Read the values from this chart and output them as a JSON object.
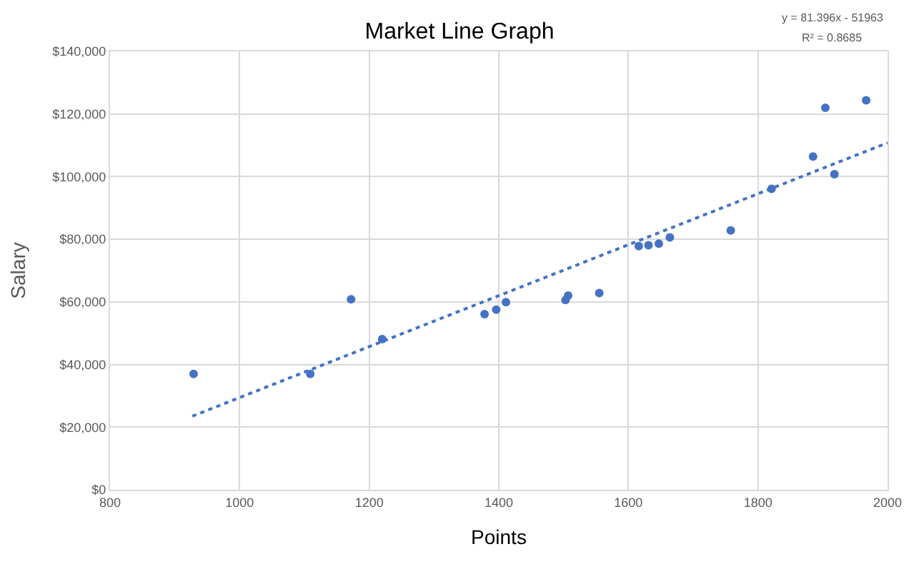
{
  "chart_data": {
    "type": "scatter",
    "title": "Market Line Graph",
    "xlabel": "Points",
    "ylabel": "Salary",
    "annotations": [
      "y = 81.396x - 51963",
      "R² = 0.8685"
    ],
    "xlim": [
      800,
      2000
    ],
    "xticks": [
      800,
      1000,
      1200,
      1400,
      1600,
      1800,
      2000
    ],
    "ylim": [
      0,
      140000
    ],
    "yticks": [
      {
        "value": 0,
        "label": "$0"
      },
      {
        "value": 20000,
        "label": "$20,000"
      },
      {
        "value": 40000,
        "label": "$40,000"
      },
      {
        "value": 60000,
        "label": "$60,000"
      },
      {
        "value": 80000,
        "label": "$80,000"
      },
      {
        "value": 100000,
        "label": "$100,000"
      },
      {
        "value": 120000,
        "label": "$120,000"
      },
      {
        "value": 140000,
        "label": "$140,000"
      }
    ],
    "grid": true,
    "series": [
      {
        "marker": "circle",
        "color": "#4472c4",
        "x": [
          929,
          1109,
          1172,
          1220,
          1378,
          1396,
          1411,
          1503,
          1507,
          1555,
          1616,
          1631,
          1647,
          1664,
          1758,
          1821,
          1885,
          1904,
          1918,
          1967
        ],
        "values": [
          37000,
          37000,
          60800,
          48100,
          56100,
          57500,
          59900,
          60600,
          62000,
          62800,
          77800,
          78100,
          78600,
          80600,
          82800,
          96100,
          106400,
          122000,
          100800,
          124400
        ]
      },
      {
        "type": "line",
        "marker": "none",
        "color": "#4472c4",
        "line_style": "dotted",
        "x": [
          927,
          2000
        ],
        "values": [
          23500,
          110800
        ]
      }
    ]
  }
}
